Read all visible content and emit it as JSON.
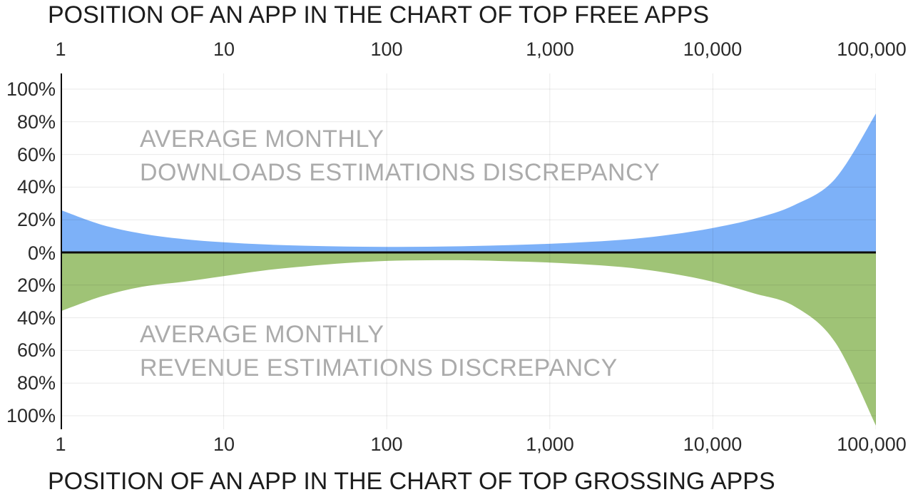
{
  "chart_data": {
    "type": "area",
    "title_top": "POSITION OF AN APP IN THE CHART OF TOP FREE APPS",
    "title_bottom": "POSITION OF AN APP IN THE CHART OF TOP GROSSING APPS",
    "x_axis": {
      "scale": "log",
      "range": [
        1,
        100000
      ],
      "ticks": [
        "1",
        "10",
        "100",
        "1,000",
        "10,000",
        "100,000"
      ]
    },
    "y_axis": {
      "unit": "%",
      "gridline_step_pct": 20,
      "plot_range_pct": [
        -110,
        110
      ],
      "ticks_top_to_bottom": [
        "100%",
        "80%",
        "60%",
        "40%",
        "20%",
        "0%",
        "20%",
        "40%",
        "60%",
        "80%",
        "100%"
      ]
    },
    "series": [
      {
        "name": "AVERAGE MONTHLY DOWNLOADS ESTIMATIONS DISCREPANCY",
        "side": "above-zero",
        "color": "#7db1f8",
        "log10_positions": [
          0,
          0.25,
          0.5,
          0.75,
          1,
          1.25,
          1.5,
          1.75,
          2,
          2.25,
          2.5,
          2.75,
          3,
          3.25,
          3.5,
          3.75,
          4,
          4.25,
          4.5,
          4.75,
          5
        ],
        "discrepancy_pct": [
          26,
          17,
          11.5,
          8.2,
          6.2,
          4.9,
          4.1,
          3.6,
          3.4,
          3.5,
          3.9,
          4.5,
          5.3,
          6.5,
          8.2,
          11,
          15,
          20.5,
          29,
          45,
          85
        ]
      },
      {
        "name": "AVERAGE MONTHLY REVENUE ESTIMATIONS DISCREPANCY",
        "side": "below-zero",
        "color": "#9fc376",
        "log10_positions": [
          0,
          0.25,
          0.5,
          0.75,
          1,
          1.25,
          1.5,
          1.75,
          2,
          2.25,
          2.5,
          2.75,
          3,
          3.25,
          3.5,
          3.75,
          4,
          4.25,
          4.5,
          4.75,
          5
        ],
        "discrepancy_pct": [
          36,
          27,
          21,
          18,
          14.5,
          11,
          8.5,
          6.5,
          5.2,
          4.8,
          4.8,
          5.4,
          6.2,
          7.5,
          9.5,
          13,
          18,
          25,
          33,
          55,
          106
        ]
      }
    ],
    "annotations": {
      "top_line1": "AVERAGE MONTHLY",
      "top_line2": "DOWNLOADS ESTIMATIONS DISCREPANCY",
      "bottom_line1": "AVERAGE MONTHLY",
      "bottom_line2": "REVENUE ESTIMATIONS DISCREPANCY"
    },
    "layout": {
      "grid": true,
      "legend": "none"
    }
  },
  "colors": {
    "background": "#ffffff",
    "downloads_area": "#7db1f8",
    "revenue_area": "#9fc376",
    "zero_line": "#0d0d0d",
    "axis_line": "#0d0d0d",
    "gridline": "#e7e7e7",
    "title_text": "#1c1c1c",
    "tick_text": "#2a2a2a",
    "watermark_text": "#ababab"
  }
}
